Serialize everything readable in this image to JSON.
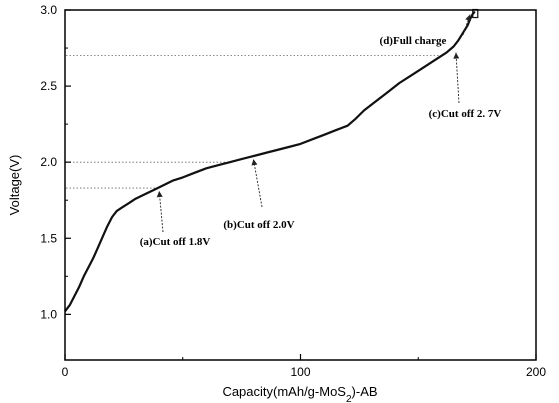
{
  "chart_data": {
    "type": "line",
    "xlabel": "Capacity(mAh/g-MoS2)-AB",
    "xlabel_parts": {
      "main": "Capacity(mAh/g-MoS",
      "sub": "2",
      "tail": ")-AB"
    },
    "ylabel": "Voltage(V)",
    "xlim": [
      0,
      200
    ],
    "ylim": [
      0.7,
      3.0
    ],
    "x_ticks": [
      0,
      100,
      200
    ],
    "x_tick_labels": [
      "0",
      "100",
      "200"
    ],
    "y_ticks": [
      1.0,
      1.5,
      2.0,
      2.5,
      3.0
    ],
    "y_tick_labels": [
      "1.0",
      "1.5",
      "2.0",
      "2.5",
      "3.0"
    ],
    "grid": false,
    "series": [
      {
        "x": [
          0,
          2,
          4,
          6,
          8,
          10,
          12,
          14,
          16,
          18,
          20,
          22,
          24,
          27,
          30,
          34,
          38,
          42,
          46,
          50,
          55,
          60,
          65,
          70,
          75,
          80,
          85,
          90,
          95,
          100,
          105,
          110,
          115,
          120,
          123,
          127,
          132,
          137,
          142,
          147,
          152,
          157,
          162,
          165,
          167,
          169,
          171,
          172,
          173,
          174
        ],
        "y": [
          1.02,
          1.06,
          1.12,
          1.18,
          1.25,
          1.31,
          1.37,
          1.44,
          1.51,
          1.58,
          1.64,
          1.68,
          1.7,
          1.73,
          1.76,
          1.79,
          1.82,
          1.85,
          1.88,
          1.9,
          1.93,
          1.96,
          1.98,
          2.0,
          2.02,
          2.04,
          2.06,
          2.08,
          2.1,
          2.12,
          2.15,
          2.18,
          2.21,
          2.24,
          2.28,
          2.34,
          2.4,
          2.46,
          2.52,
          2.57,
          2.62,
          2.67,
          2.72,
          2.76,
          2.8,
          2.85,
          2.9,
          2.94,
          2.97,
          2.99
        ]
      }
    ],
    "annotations": [
      {
        "label": "(a)Cut off 1.8V",
        "point": [
          40,
          1.83
        ]
      },
      {
        "label": "(b)Cut off 2.0V",
        "point": [
          80,
          2.04
        ]
      },
      {
        "label": "(c)Cut off 2. 7V",
        "point": [
          166,
          2.74
        ]
      },
      {
        "label": "(d)Full charge",
        "point": [
          172,
          2.99
        ]
      }
    ],
    "reference_lines": [
      1.83,
      2.0,
      2.7
    ]
  }
}
